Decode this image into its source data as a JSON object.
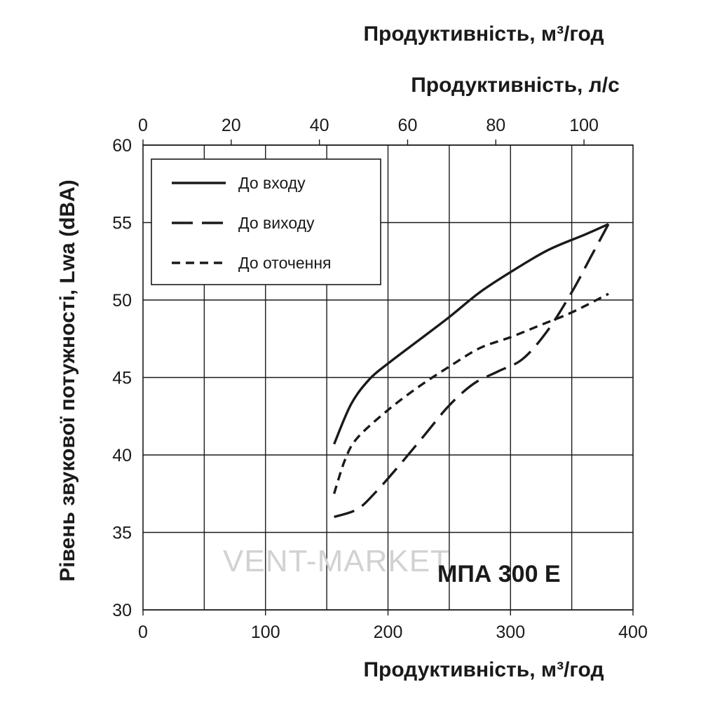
{
  "chart_data": {
    "type": "line",
    "title": "МПА 300 E",
    "watermark": "VENT-MARKET",
    "xlabel": "Продуктивність, м³/год",
    "x2label": "Продуктивність, л/с",
    "x3label": "Продуктивність, м³/год",
    "ylabel": "Рівень звукової потужності, Lwa (dBA)",
    "xlim": [
      0,
      400
    ],
    "ylim": [
      30,
      60
    ],
    "x_ticks": [
      "0",
      "100",
      "200",
      "300",
      "400"
    ],
    "x2_ticks": [
      "0",
      "20",
      "40",
      "60",
      "80",
      "100"
    ],
    "y_ticks": [
      "30",
      "35",
      "40",
      "45",
      "50",
      "55",
      "60"
    ],
    "legend": {
      "position": "top-left",
      "entries": [
        "До входу",
        "До виходу",
        "До оточення"
      ]
    },
    "series": [
      {
        "name": "До входу",
        "style": "solid",
        "x": [
          156,
          170,
          185,
          200,
          225,
          250,
          275,
          300,
          330,
          360,
          380
        ],
        "y": [
          40.7,
          43.3,
          44.9,
          45.9,
          47.4,
          48.9,
          50.5,
          51.8,
          53.2,
          54.2,
          54.9
        ]
      },
      {
        "name": "До виходу",
        "style": "long-dash",
        "x": [
          156,
          175,
          190,
          210,
          230,
          250,
          270,
          290,
          310,
          330,
          350,
          365,
          380
        ],
        "y": [
          36.0,
          36.5,
          37.6,
          39.4,
          41.3,
          43.2,
          44.6,
          45.4,
          46.2,
          48.0,
          50.5,
          52.7,
          54.9
        ]
      },
      {
        "name": "До оточення",
        "style": "short-dash",
        "x": [
          156,
          165,
          175,
          200,
          225,
          250,
          275,
          300,
          325,
          350,
          380
        ],
        "y": [
          37.5,
          39.7,
          41.1,
          42.9,
          44.4,
          45.7,
          46.9,
          47.6,
          48.4,
          49.2,
          50.4
        ]
      }
    ]
  }
}
